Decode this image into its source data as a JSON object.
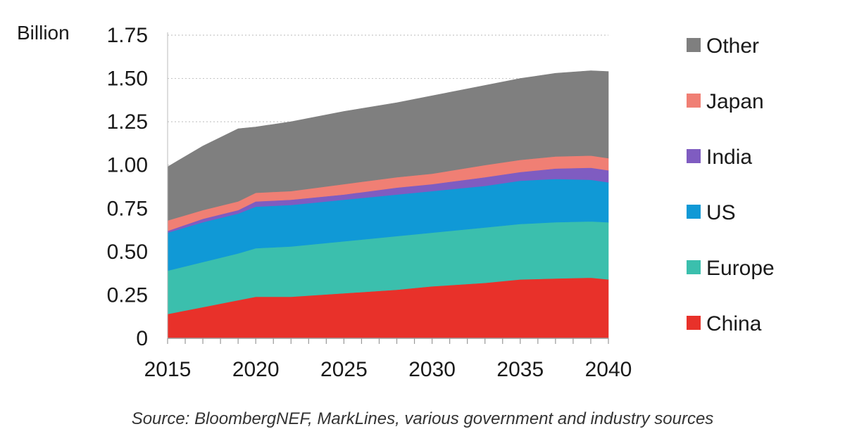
{
  "chart_data": {
    "type": "area",
    "stacked": true,
    "ylabel": "Billion",
    "ylim": [
      0,
      1.75
    ],
    "yticks": [
      "0",
      "0.25",
      "0.50",
      "0.75",
      "1.00",
      "1.25",
      "1.50",
      "1.75"
    ],
    "xlim": [
      2015,
      2040
    ],
    "xticks": [
      "2015",
      "2020",
      "2025",
      "2030",
      "2035",
      "2040"
    ],
    "grid": "horizontal dotted",
    "legend_position": "right",
    "x": [
      2015,
      2017,
      2019,
      2020,
      2022,
      2025,
      2028,
      2030,
      2033,
      2035,
      2037,
      2039,
      2040
    ],
    "series": [
      {
        "name": "China",
        "color": "#e8312a",
        "values": [
          0.14,
          0.18,
          0.22,
          0.24,
          0.24,
          0.26,
          0.28,
          0.3,
          0.32,
          0.34,
          0.345,
          0.35,
          0.34
        ]
      },
      {
        "name": "Europe",
        "color": "#3bbfad",
        "values": [
          0.25,
          0.26,
          0.27,
          0.28,
          0.29,
          0.3,
          0.31,
          0.31,
          0.32,
          0.32,
          0.325,
          0.325,
          0.33
        ]
      },
      {
        "name": "US",
        "color": "#1099d6",
        "values": [
          0.22,
          0.23,
          0.23,
          0.24,
          0.24,
          0.24,
          0.24,
          0.24,
          0.24,
          0.25,
          0.25,
          0.24,
          0.23
        ]
      },
      {
        "name": "India",
        "color": "#7f5cc1",
        "values": [
          0.01,
          0.02,
          0.02,
          0.03,
          0.03,
          0.03,
          0.04,
          0.04,
          0.05,
          0.05,
          0.06,
          0.07,
          0.07
        ]
      },
      {
        "name": "Japan",
        "color": "#f07f74",
        "values": [
          0.06,
          0.05,
          0.05,
          0.05,
          0.05,
          0.06,
          0.06,
          0.06,
          0.07,
          0.07,
          0.07,
          0.07,
          0.07
        ]
      },
      {
        "name": "Other",
        "color": "#7f7f7f",
        "values": [
          0.31,
          0.37,
          0.42,
          0.38,
          0.4,
          0.42,
          0.43,
          0.45,
          0.46,
          0.47,
          0.48,
          0.49,
          0.5
        ]
      }
    ],
    "legend_order": [
      "Other",
      "Japan",
      "India",
      "US",
      "Europe",
      "China"
    ]
  },
  "source": "Source: BloombergNEF, MarkLines, various government and industry sources"
}
